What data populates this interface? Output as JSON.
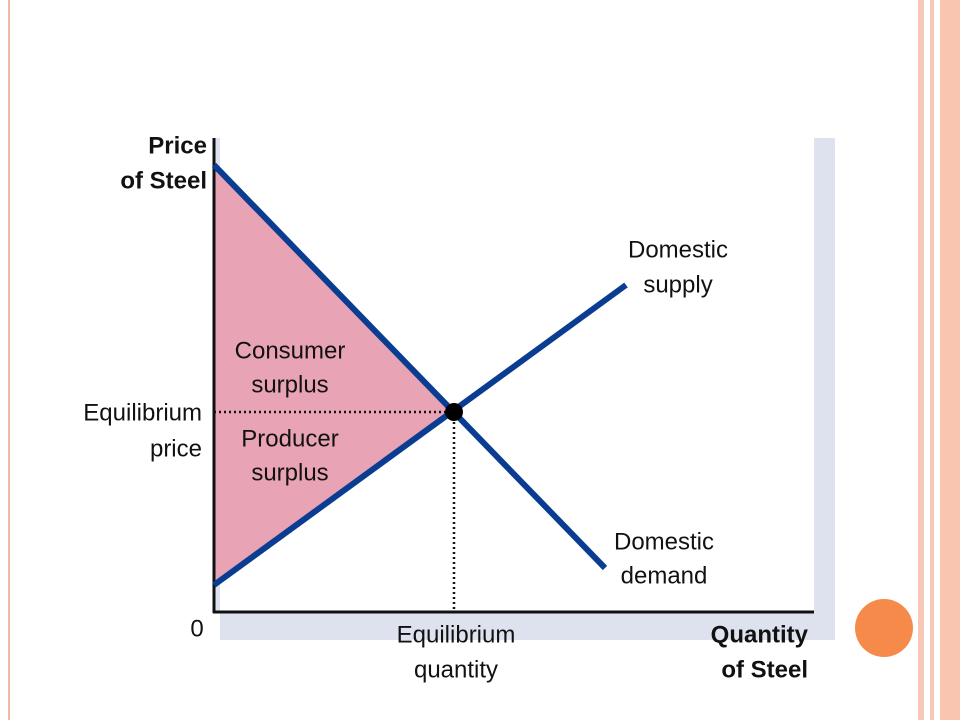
{
  "axes": {
    "y_label": [
      "Price",
      "of Steel"
    ],
    "x_label": [
      "Quantity",
      "of Steel"
    ],
    "origin": "0"
  },
  "curves": {
    "supply": [
      "Domestic",
      "supply"
    ],
    "demand": [
      "Domestic",
      "demand"
    ]
  },
  "areas": {
    "consumer": [
      "Consumer",
      "surplus"
    ],
    "producer": [
      "Producer",
      "surplus"
    ]
  },
  "equilibrium": {
    "price": [
      "Equilibrium",
      "price"
    ],
    "quantity": [
      "Equilibrium",
      "quantity"
    ]
  }
}
